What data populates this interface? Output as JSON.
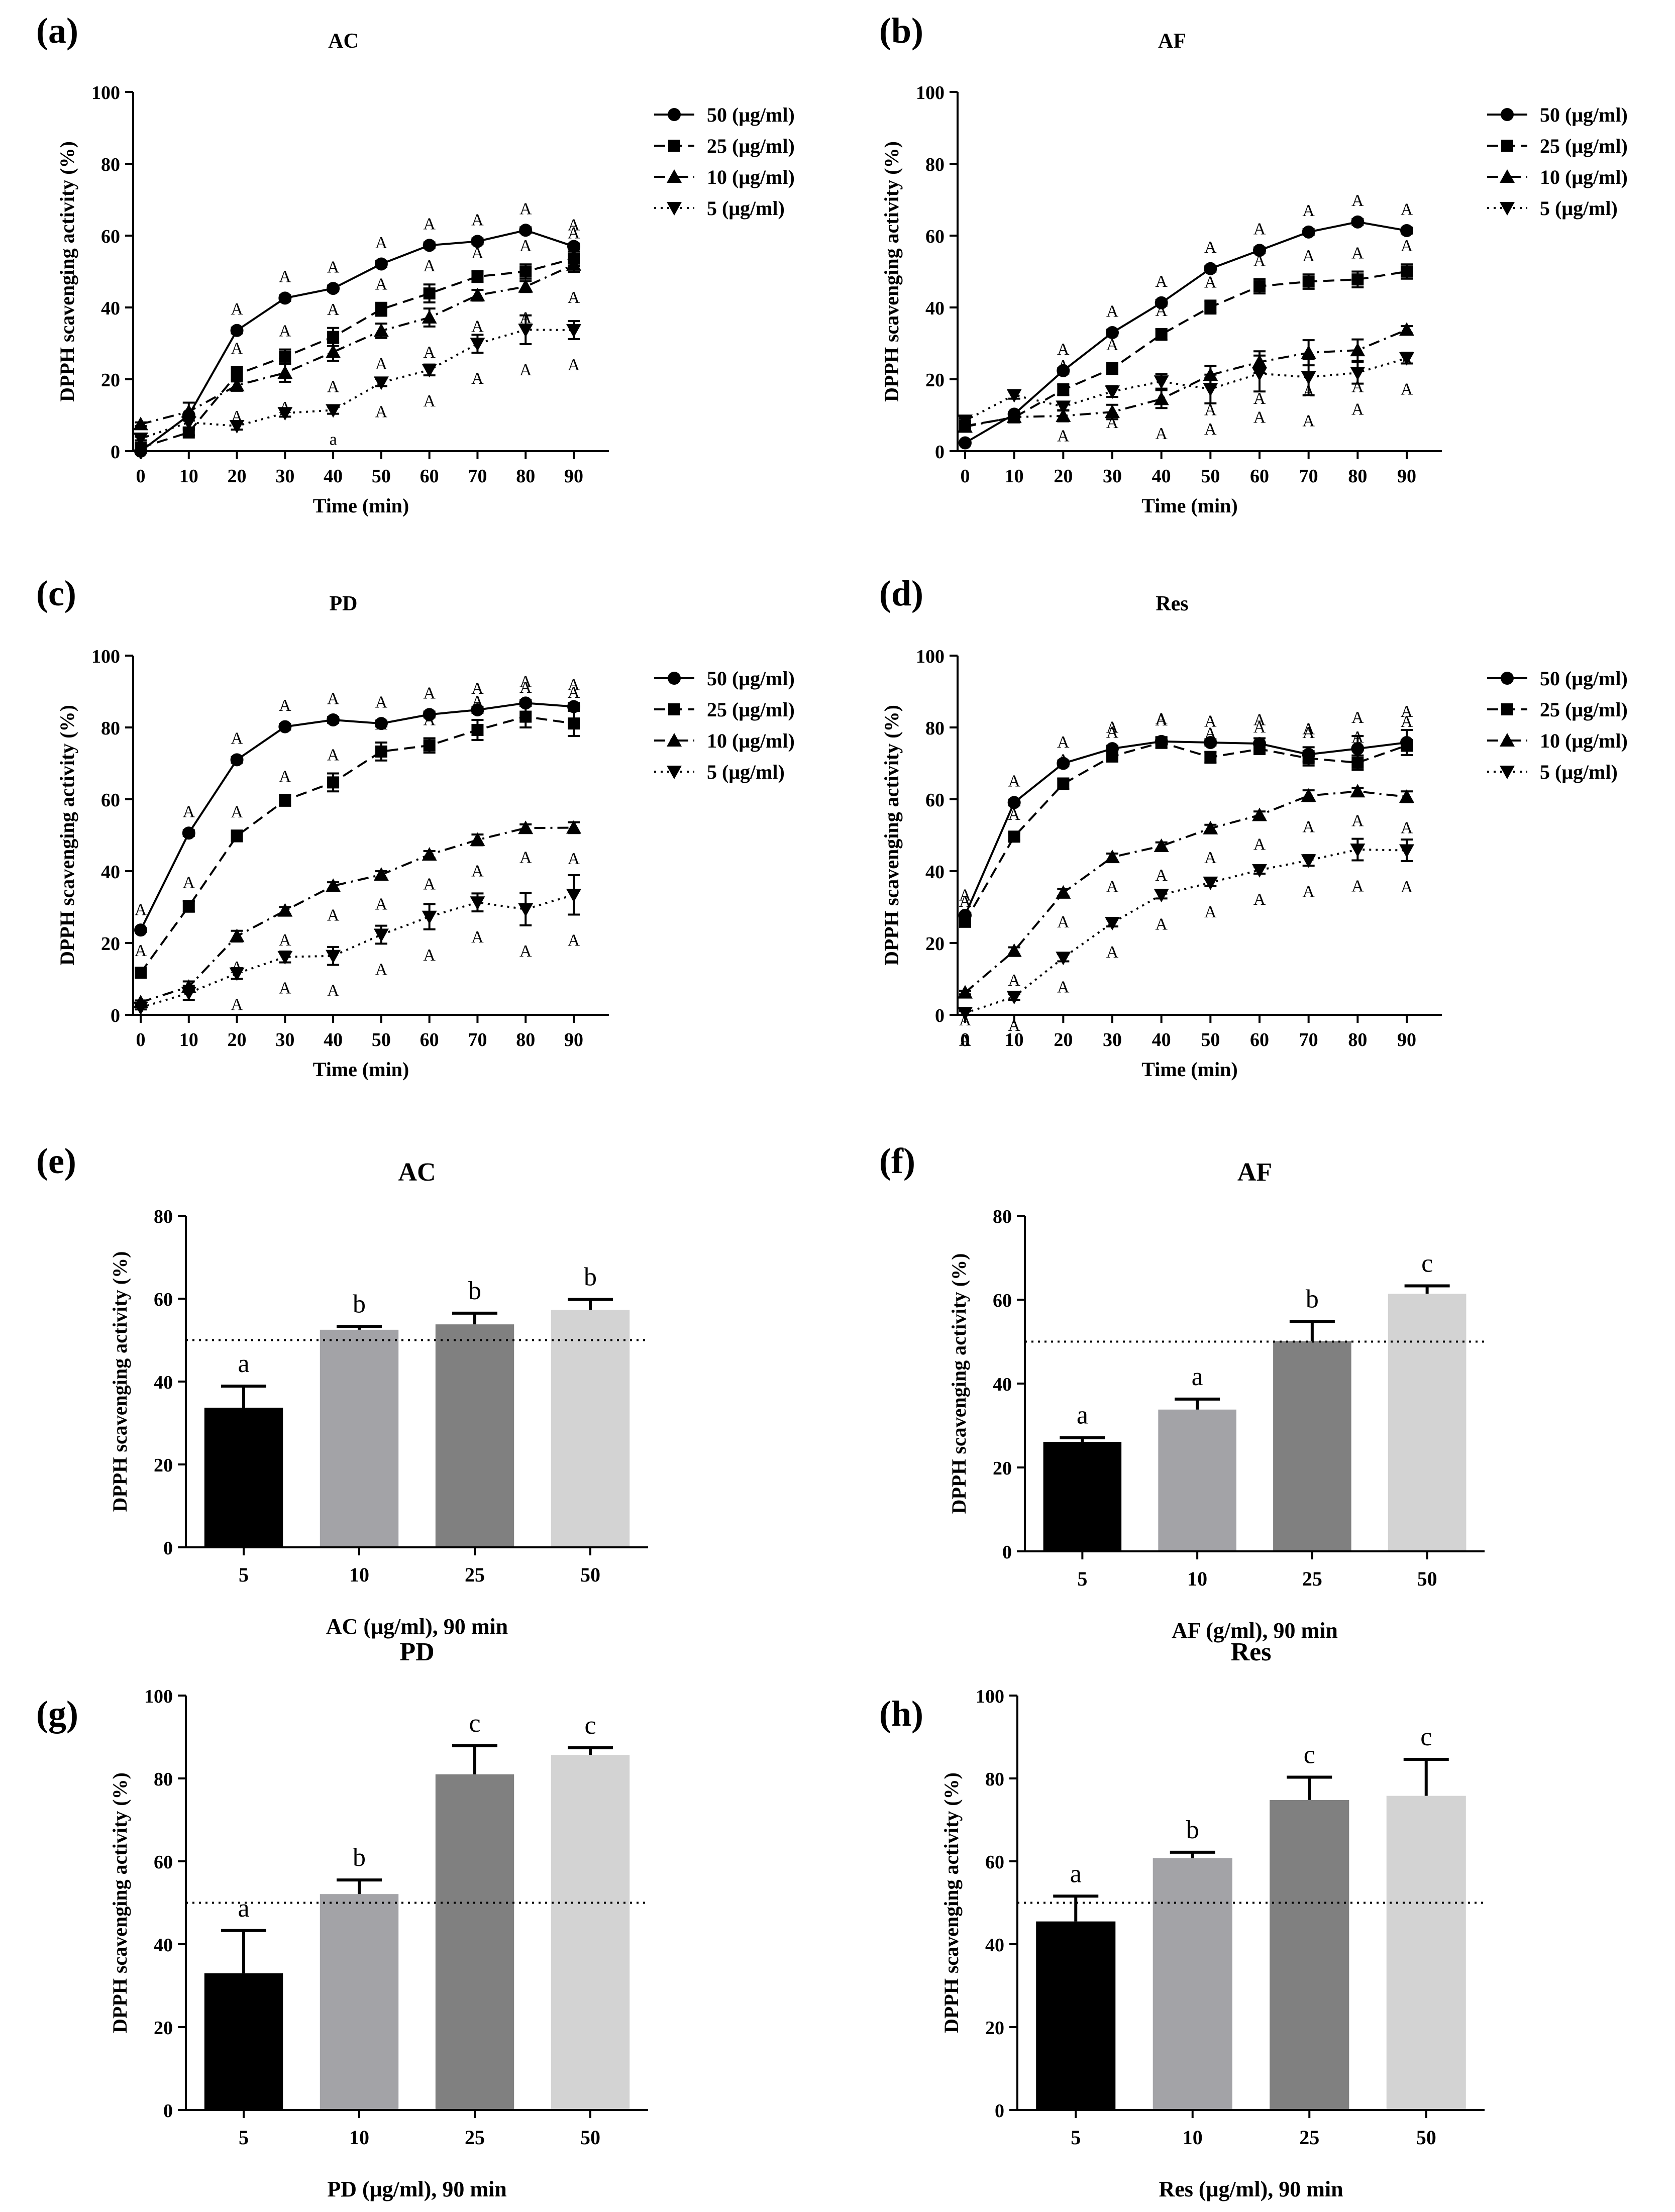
{
  "chart_data": [
    {
      "panel": "(a)",
      "type": "line",
      "title": "AC",
      "xlabel": "Time (min)",
      "ylabel": "DPPH scavenging activity (%)",
      "ylim": [
        0,
        100
      ],
      "yticks": [
        0,
        20,
        40,
        60,
        80,
        100
      ],
      "x": [
        0,
        10,
        20,
        30,
        40,
        50,
        60,
        70,
        80,
        90
      ],
      "legend_position": "top-right",
      "series": [
        {
          "name": "50 (μg/ml)",
          "marker": "circle",
          "dash": "solid",
          "values": [
            0,
            10,
            33.6,
            42.6,
            45.3,
            52.1,
            57.3,
            58.4,
            61.5,
            57.0
          ],
          "err": [
            0,
            0,
            0.8,
            0.8,
            0.8,
            0.8,
            0.8,
            0.8,
            0.8,
            0.8
          ],
          "labels": [
            "",
            "",
            "A",
            "A",
            "A",
            "A",
            "A",
            "A",
            "A",
            "A"
          ]
        },
        {
          "name": "25 (μg/ml)",
          "marker": "square",
          "dash": "dash",
          "values": [
            1,
            5.2,
            21.4,
            26.3,
            31.8,
            39.5,
            43.9,
            48.6,
            50.0,
            53.6
          ],
          "err": [
            0,
            0.8,
            2.0,
            2.0,
            2.5,
            1.8,
            2.5,
            1.5,
            2.0,
            2.0
          ],
          "labels": [
            "",
            "",
            "A",
            "A",
            "A",
            "A",
            "A",
            "A",
            "A",
            "A"
          ]
        },
        {
          "name": "10 (μg/ml)",
          "marker": "triangle-up",
          "dash": "dashdot",
          "values": [
            7.5,
            11,
            18.3,
            21.8,
            27.6,
            33.5,
            37.2,
            43.4,
            45.8,
            51.9
          ],
          "err": [
            0.5,
            2.5,
            1.5,
            2.5,
            2.5,
            2.0,
            2.5,
            1.5,
            1.5,
            2.0
          ],
          "labels": [
            "",
            "",
            "A",
            "A",
            "A",
            "A",
            "A",
            "A",
            "A",
            "A"
          ]
        },
        {
          "name": "5 (μg/ml)",
          "marker": "triangle-down",
          "dash": "dot",
          "values": [
            3.5,
            8,
            7,
            10.6,
            11.4,
            19.1,
            22.6,
            29.9,
            33.8,
            33.7
          ],
          "err": [
            0.5,
            1.5,
            1.0,
            1.0,
            1.0,
            1.0,
            1.5,
            2.5,
            4.0,
            2.5
          ],
          "labels": [
            "",
            "",
            "",
            "",
            "a",
            "A",
            "A",
            "A",
            "A",
            "A"
          ]
        }
      ]
    },
    {
      "panel": "(b)",
      "type": "line",
      "title": "AF",
      "xlabel": "Time (min)",
      "ylabel": "DPPH scavenging activity (%)",
      "ylim": [
        0,
        100
      ],
      "yticks": [
        0,
        20,
        40,
        60,
        80,
        100
      ],
      "x": [
        0,
        10,
        20,
        30,
        40,
        50,
        60,
        70,
        80,
        90
      ],
      "legend_position": "top-right",
      "series": [
        {
          "name": "50 (μg/ml)",
          "marker": "circle",
          "dash": "solid",
          "values": [
            2.3,
            10.3,
            22.4,
            33.0,
            41.3,
            50.8,
            55.9,
            61.0,
            63.8,
            61.4
          ],
          "err": [
            0,
            0.5,
            0.8,
            0.8,
            0.8,
            0.8,
            0.8,
            0.8,
            0.8,
            0.8
          ],
          "labels": [
            "",
            "",
            "A",
            "A",
            "A",
            "A",
            "A",
            "A",
            "A",
            "A"
          ]
        },
        {
          "name": "25 (μg/ml)",
          "marker": "square",
          "dash": "dash",
          "values": [
            7,
            9.4,
            17.1,
            23.0,
            32.5,
            40.1,
            45.9,
            47.2,
            47.8,
            50.0
          ],
          "err": [
            0.5,
            1.0,
            1.5,
            1.5,
            1.5,
            1.8,
            2.0,
            2.0,
            2.2,
            2.0
          ],
          "labels": [
            "",
            "",
            "A",
            "A",
            "A",
            "A",
            "A",
            "A",
            "A",
            "A"
          ]
        },
        {
          "name": "10 (μg/ml)",
          "marker": "triangle-up",
          "dash": "dashdot",
          "values": [
            6.8,
            9.5,
            9.8,
            10.9,
            14.5,
            21.2,
            24.8,
            27.4,
            28.1,
            33.8
          ],
          "err": [
            0.5,
            1.0,
            1.5,
            2.0,
            2.5,
            2.5,
            3.0,
            3.5,
            3.0,
            1.0
          ],
          "labels": [
            "",
            "",
            "",
            "",
            "A",
            "A",
            "A",
            "A",
            "A",
            "A"
          ]
        },
        {
          "name": "5 (μg/ml)",
          "marker": "triangle-down",
          "dash": "dot",
          "values": [
            8.5,
            15.6,
            12.4,
            16.6,
            19.4,
            17.3,
            21.6,
            20.6,
            21.8,
            25.9
          ],
          "err": [
            0.5,
            1.0,
            1.0,
            1.5,
            2.0,
            4.0,
            5.0,
            5.0,
            3.0,
            1.5
          ],
          "labels": [
            "",
            "",
            "A",
            "A",
            "",
            "A",
            "A",
            "A",
            "A",
            "A"
          ]
        }
      ]
    },
    {
      "panel": "(c)",
      "type": "line",
      "title": "PD",
      "xlabel": "Time (min)",
      "ylabel": "DPPH scavenging activity (%)",
      "ylim": [
        0,
        100
      ],
      "yticks": [
        0,
        20,
        40,
        60,
        80,
        100
      ],
      "x": [
        0,
        10,
        20,
        30,
        40,
        50,
        60,
        70,
        80,
        90
      ],
      "legend_position": "top-right",
      "series": [
        {
          "name": "50 (μg/ml)",
          "marker": "circle",
          "dash": "solid",
          "values": [
            23.6,
            50.6,
            71.0,
            80.2,
            82.1,
            81.1,
            83.6,
            84.9,
            86.8,
            85.8
          ],
          "err": [
            0.5,
            0.8,
            0.8,
            0.8,
            0.8,
            0.8,
            0.8,
            0.8,
            0.8,
            1.0
          ],
          "labels": [
            "A",
            "A",
            "A",
            "A",
            "A",
            "A",
            "A",
            "A",
            "A",
            "A"
          ]
        },
        {
          "name": "25 (μg/ml)",
          "marker": "square",
          "dash": "dash",
          "values": [
            11.7,
            30.2,
            49.8,
            59.7,
            64.7,
            73.3,
            75.0,
            79.3,
            83.0,
            81.1
          ],
          "err": [
            1.0,
            1.5,
            1.5,
            1.5,
            2.5,
            2.5,
            2.0,
            2.8,
            3.0,
            3.5
          ],
          "labels": [
            "A",
            "A",
            "A",
            "A",
            "A",
            "A",
            "A",
            "A",
            "A",
            "A"
          ]
        },
        {
          "name": "10 (μg/ml)",
          "marker": "triangle-up",
          "dash": "dashdot",
          "values": [
            3.5,
            7.8,
            21.9,
            29.0,
            35.9,
            39.0,
            44.6,
            48.7,
            52.0,
            52.1
          ],
          "err": [
            0.5,
            1.5,
            1.5,
            1.0,
            1.0,
            1.0,
            1.0,
            1.5,
            1.0,
            1.5
          ],
          "labels": [
            "",
            "",
            "A",
            "A",
            "A",
            "A",
            "A",
            "A",
            "A",
            "A"
          ]
        },
        {
          "name": "5 (μg/ml)",
          "marker": "triangle-down",
          "dash": "dot",
          "values": [
            2.0,
            6.1,
            11.5,
            16.1,
            16.4,
            22.3,
            27.3,
            31.3,
            29.4,
            33.4
          ],
          "err": [
            0.5,
            2.0,
            1.5,
            1.5,
            2.5,
            2.5,
            3.5,
            2.5,
            4.5,
            5.5
          ],
          "labels": [
            "",
            "",
            "A",
            "A",
            "A",
            "A",
            "A",
            "A",
            "A",
            "A"
          ]
        }
      ]
    },
    {
      "panel": "(d)",
      "type": "line",
      "title": "Res",
      "xlabel": "Time (min)",
      "ylabel": "DPPH scavenging activity (%)",
      "ylim": [
        0,
        100
      ],
      "yticks": [
        0,
        20,
        40,
        60,
        80,
        100
      ],
      "x": [
        0,
        10,
        20,
        30,
        40,
        50,
        60,
        70,
        80,
        90
      ],
      "legend_position": "top-right",
      "series": [
        {
          "name": "50 (μg/ml)",
          "marker": "circle",
          "dash": "solid",
          "values": [
            27.7,
            59.1,
            70.0,
            74.1,
            76.1,
            75.8,
            75.5,
            72.5,
            74.1,
            75.8
          ],
          "err": [
            0.5,
            0.8,
            0.8,
            0.8,
            0.8,
            0.8,
            1.5,
            2.0,
            3.5,
            3.5
          ],
          "labels": [
            "A",
            "A",
            "A",
            "A",
            "A",
            "A",
            "A",
            "A",
            "A",
            "A"
          ]
        },
        {
          "name": "25 (μg/ml)",
          "marker": "square",
          "dash": "dash",
          "values": [
            25.9,
            49.6,
            64.3,
            72.0,
            75.8,
            71.7,
            74.0,
            71.4,
            70.2,
            75.0
          ],
          "err": [
            0.5,
            1.0,
            1.5,
            1.5,
            1.5,
            1.5,
            1.0,
            2.0,
            2.0,
            1.5
          ],
          "labels": [
            "A",
            "A",
            "A",
            "A",
            "A",
            "A",
            "A",
            "A",
            "A",
            "A"
          ]
        },
        {
          "name": "10 (μg/ml)",
          "marker": "triangle-up",
          "dash": "dashdot",
          "values": [
            6.2,
            17.8,
            34.0,
            43.9,
            47.0,
            51.9,
            55.6,
            61.0,
            62.2,
            60.7
          ],
          "err": [
            0.5,
            1.0,
            1.0,
            1.0,
            1.0,
            1.0,
            1.0,
            1.5,
            1.0,
            1.5
          ],
          "labels": [
            "A",
            "A",
            "A",
            "A",
            "A",
            "A",
            "A",
            "A",
            "A",
            "A"
          ]
        },
        {
          "name": "5 (μg/ml)",
          "marker": "triangle-down",
          "dash": "dot",
          "values": [
            0.5,
            5.0,
            15.9,
            25.6,
            33.4,
            36.8,
            40.3,
            43.0,
            46.0,
            45.8
          ],
          "err": [
            0.5,
            0.8,
            1.0,
            1.0,
            1.0,
            1.0,
            1.0,
            1.5,
            3.0,
            3.0
          ],
          "labels": [
            "A",
            "A",
            "A",
            "A",
            "A",
            "A",
            "A",
            "A",
            "A",
            "A"
          ]
        }
      ]
    },
    {
      "panel": "(e)",
      "type": "bar",
      "title": "AC",
      "xlabel": "AC (μg/ml), 90 min",
      "ylabel": "DPPH scavenging activity (%)",
      "ylim": [
        0,
        80
      ],
      "yticks": [
        0,
        20,
        40,
        60,
        80
      ],
      "categories": [
        "5",
        "10",
        "25",
        "50"
      ],
      "values": [
        33.7,
        52.5,
        53.8,
        57.3
      ],
      "err": [
        5.2,
        0.8,
        2.7,
        2.5
      ],
      "letters": [
        "a",
        "b",
        "b",
        "b"
      ],
      "bar_colors": [
        "#000000",
        "#a3a3a7",
        "#808080",
        "#d3d3d3"
      ],
      "reference_line": 50
    },
    {
      "panel": "(f)",
      "type": "bar",
      "title": "AF",
      "xlabel": "AF (g/ml), 90 min",
      "ylabel": "DPPH scavenging activity (%)",
      "ylim": [
        0,
        80
      ],
      "yticks": [
        0,
        20,
        40,
        60,
        80
      ],
      "categories": [
        "5",
        "10",
        "25",
        "50"
      ],
      "values": [
        26.1,
        33.8,
        50.1,
        61.4
      ],
      "err": [
        1.0,
        2.5,
        4.7,
        1.9
      ],
      "letters": [
        "a",
        "a",
        "b",
        "c"
      ],
      "bar_colors": [
        "#000000",
        "#a3a3a7",
        "#808080",
        "#d3d3d3"
      ],
      "reference_line": 50
    },
    {
      "panel": "(g)",
      "type": "bar",
      "title": "PD",
      "xlabel": "PD (μg/ml), 90 min",
      "ylabel": "DPPH scavenging activity (%)",
      "ylim": [
        0,
        100
      ],
      "yticks": [
        0,
        20,
        40,
        60,
        80,
        100
      ],
      "categories": [
        "5",
        "10",
        "25",
        "50"
      ],
      "values": [
        33.0,
        52.1,
        81.0,
        85.7
      ],
      "err": [
        10.3,
        3.4,
        6.9,
        1.7
      ],
      "letters": [
        "a",
        "b",
        "c",
        "c"
      ],
      "bar_colors": [
        "#000000",
        "#a3a3a7",
        "#808080",
        "#d3d3d3"
      ],
      "reference_line": 50
    },
    {
      "panel": "(h)",
      "type": "bar",
      "title": "Res",
      "xlabel": "Res (μg/ml), 90 min",
      "ylabel": "DPPH scavenging activity (%)",
      "ylim": [
        0,
        100
      ],
      "yticks": [
        0,
        20,
        40,
        60,
        80,
        100
      ],
      "categories": [
        "5",
        "10",
        "25",
        "50"
      ],
      "values": [
        45.5,
        60.8,
        74.8,
        75.8
      ],
      "err": [
        6.1,
        1.4,
        5.5,
        8.8
      ],
      "letters": [
        "a",
        "b",
        "c",
        "c"
      ],
      "bar_colors": [
        "#000000",
        "#a3a3a7",
        "#808080",
        "#d3d3d3"
      ],
      "reference_line": 50
    }
  ]
}
